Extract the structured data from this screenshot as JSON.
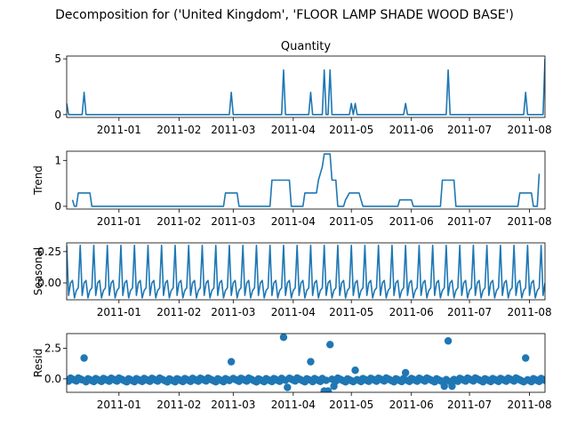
{
  "figure": {
    "suptitle": "Decomposition for ('United Kingdom', 'FLOOR LAMP SHADE WOOD BASE')"
  },
  "chart_data": [
    {
      "type": "line",
      "title": "Quantity",
      "ylabel": "",
      "ylim": [
        -0.25,
        5.25
      ],
      "yticks": [
        "0",
        "5"
      ],
      "x_ticks": [
        "2011-01",
        "2011-02",
        "2011-03",
        "2011-04",
        "2011-05",
        "2011-06",
        "2011-07",
        "2011-08"
      ],
      "x_domain": [
        "2010-12-05",
        "2011-08-09"
      ],
      "line_color": "#1f77b4",
      "baseline": 0,
      "spikes": [
        {
          "x": "2010-12-05",
          "y": 1
        },
        {
          "x": "2010-12-14",
          "y": 2
        },
        {
          "x": "2011-02-28",
          "y": 2
        },
        {
          "x": "2011-03-27",
          "y": 4
        },
        {
          "x": "2011-04-10",
          "y": 2
        },
        {
          "x": "2011-04-17",
          "y": 4
        },
        {
          "x": "2011-04-20",
          "y": 4
        },
        {
          "x": "2011-05-01",
          "y": 1
        },
        {
          "x": "2011-05-03",
          "y": 1
        },
        {
          "x": "2011-05-29",
          "y": 1
        },
        {
          "x": "2011-06-20",
          "y": 4
        },
        {
          "x": "2011-07-30",
          "y": 2
        },
        {
          "x": "2011-08-09",
          "y": 5
        }
      ]
    },
    {
      "type": "line",
      "title": "",
      "ylabel": "Trend",
      "ylim": [
        -0.06,
        1.2
      ],
      "yticks": [
        "0",
        "1"
      ],
      "x_ticks": [
        "2011-01",
        "2011-02",
        "2011-03",
        "2011-04",
        "2011-05",
        "2011-06",
        "2011-07",
        "2011-08"
      ],
      "x_domain": [
        "2010-12-05",
        "2011-08-09"
      ],
      "line_color": "#1f77b4",
      "series": [
        {
          "x": "2010-12-08",
          "y": 0.14
        },
        {
          "x": "2010-12-09",
          "y": 0.0
        },
        {
          "x": "2010-12-10",
          "y": 0.0
        },
        {
          "x": "2010-12-11",
          "y": 0.29
        },
        {
          "x": "2010-12-17",
          "y": 0.29
        },
        {
          "x": "2010-12-18",
          "y": 0.0
        },
        {
          "x": "2011-02-24",
          "y": 0.0
        },
        {
          "x": "2011-02-25",
          "y": 0.29
        },
        {
          "x": "2011-03-03",
          "y": 0.29
        },
        {
          "x": "2011-03-04",
          "y": 0.0
        },
        {
          "x": "2011-03-20",
          "y": 0.0
        },
        {
          "x": "2011-03-21",
          "y": 0.57
        },
        {
          "x": "2011-03-30",
          "y": 0.57
        },
        {
          "x": "2011-03-31",
          "y": 0.0
        },
        {
          "x": "2011-04-06",
          "y": 0.0
        },
        {
          "x": "2011-04-07",
          "y": 0.29
        },
        {
          "x": "2011-04-13",
          "y": 0.29
        },
        {
          "x": "2011-04-14",
          "y": 0.57
        },
        {
          "x": "2011-04-16",
          "y": 0.86
        },
        {
          "x": "2011-04-17",
          "y": 1.14
        },
        {
          "x": "2011-04-20",
          "y": 1.14
        },
        {
          "x": "2011-04-21",
          "y": 0.57
        },
        {
          "x": "2011-04-23",
          "y": 0.57
        },
        {
          "x": "2011-04-24",
          "y": 0.0
        },
        {
          "x": "2011-04-27",
          "y": 0.0
        },
        {
          "x": "2011-04-28",
          "y": 0.14
        },
        {
          "x": "2011-04-30",
          "y": 0.29
        },
        {
          "x": "2011-05-05",
          "y": 0.29
        },
        {
          "x": "2011-05-06",
          "y": 0.14
        },
        {
          "x": "2011-05-07",
          "y": 0.0
        },
        {
          "x": "2011-05-25",
          "y": 0.0
        },
        {
          "x": "2011-05-26",
          "y": 0.14
        },
        {
          "x": "2011-06-01",
          "y": 0.14
        },
        {
          "x": "2011-06-02",
          "y": 0.0
        },
        {
          "x": "2011-06-16",
          "y": 0.0
        },
        {
          "x": "2011-06-17",
          "y": 0.57
        },
        {
          "x": "2011-06-23",
          "y": 0.57
        },
        {
          "x": "2011-06-24",
          "y": 0.0
        },
        {
          "x": "2011-07-26",
          "y": 0.0
        },
        {
          "x": "2011-07-27",
          "y": 0.29
        },
        {
          "x": "2011-08-02",
          "y": 0.29
        },
        {
          "x": "2011-08-03",
          "y": 0.0
        },
        {
          "x": "2011-08-05",
          "y": 0.0
        },
        {
          "x": "2011-08-06",
          "y": 0.71
        }
      ]
    },
    {
      "type": "line",
      "title": "",
      "ylabel": "Seasonal",
      "ylim": [
        -0.135,
        0.32
      ],
      "yticks": [
        "0.25",
        "0.00"
      ],
      "ytick_values": [
        0.25,
        0.0
      ],
      "x_ticks": [
        "2011-01",
        "2011-02",
        "2011-03",
        "2011-04",
        "2011-05",
        "2011-06",
        "2011-07",
        "2011-08"
      ],
      "x_domain": [
        "2010-12-05",
        "2011-08-09"
      ],
      "line_color": "#1f77b4",
      "period": 7,
      "first_peak": "2010-12-12",
      "pattern": [
        0.3,
        -0.1,
        0.0,
        0.02,
        -0.12,
        -0.06,
        -0.04
      ]
    },
    {
      "type": "scatter",
      "title": "",
      "ylabel": "Resid",
      "ylim": [
        -1.1,
        3.7
      ],
      "yticks": [
        "0.0",
        "2.5"
      ],
      "ytick_values": [
        0.0,
        2.5
      ],
      "x_ticks": [
        "2011-01",
        "2011-02",
        "2011-03",
        "2011-04",
        "2011-05",
        "2011-06",
        "2011-07",
        "2011-08"
      ],
      "x_domain": [
        "2010-12-05",
        "2011-08-09"
      ],
      "marker_color": "#1f77b4",
      "baseline": 0,
      "outliers": [
        {
          "x": "2010-12-14",
          "y": 1.7
        },
        {
          "x": "2011-02-28",
          "y": 1.4
        },
        {
          "x": "2011-03-27",
          "y": 3.4
        },
        {
          "x": "2011-04-10",
          "y": 1.4
        },
        {
          "x": "2011-04-17",
          "y": 2.5
        },
        {
          "x": "2011-04-20",
          "y": 2.8
        },
        {
          "x": "2011-05-03",
          "y": 0.7
        },
        {
          "x": "2011-05-29",
          "y": 0.5
        },
        {
          "x": "2011-06-20",
          "y": 3.1
        },
        {
          "x": "2011-07-30",
          "y": 1.7
        },
        {
          "x": "2011-03-29",
          "y": -0.7
        },
        {
          "x": "2011-04-17",
          "y": -1.0
        },
        {
          "x": "2011-04-19",
          "y": -1.0
        },
        {
          "x": "2011-04-22",
          "y": -0.6
        },
        {
          "x": "2011-06-18",
          "y": -0.6
        },
        {
          "x": "2011-06-22",
          "y": -0.6
        }
      ]
    }
  ]
}
